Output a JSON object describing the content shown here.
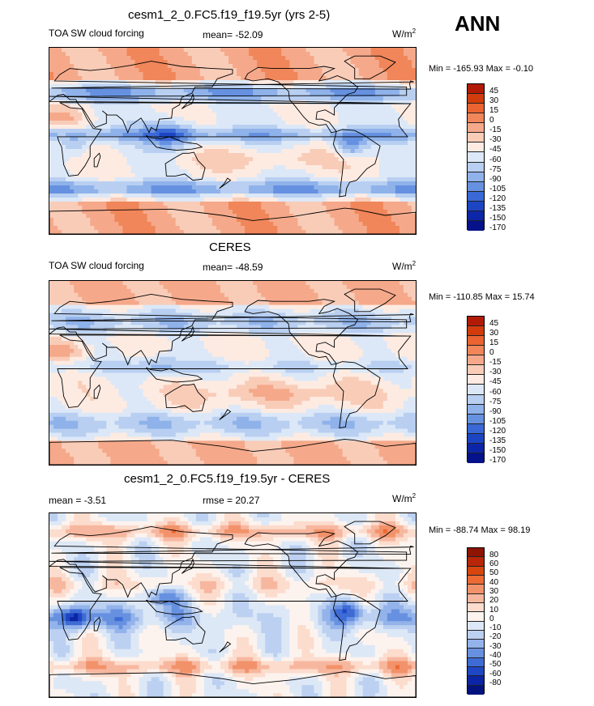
{
  "season": "ANN",
  "palette_full": [
    "#b21a06",
    "#d23c0c",
    "#ea6331",
    "#f0865a",
    "#f5a98a",
    "#f9ccb8",
    "#fdebe2",
    "#dce8f7",
    "#b8cff1",
    "#8fb2ea",
    "#6691e0",
    "#3a68d6",
    "#1c45c4",
    "#0d26a8",
    "#05128a"
  ],
  "palette_diff": [
    "#8e1403",
    "#b8270a",
    "#d8460f",
    "#ed6a35",
    "#f2926a",
    "#f7b79f",
    "#fcdccd",
    "#fdf3ee",
    "#dde8f7",
    "#bcd0f1",
    "#93b3ea",
    "#6791e0",
    "#3e6bd5",
    "#1f47c3",
    "#0c25a6",
    "#04127f"
  ],
  "panels": [
    {
      "title": "cesm1_2_0.FC5.f19_f19.5yr (yrs 2-5)",
      "left_label": "TOA SW cloud forcing",
      "stat_label": "mean= -52.09",
      "units": "W/m",
      "units_exp": "2",
      "minmax": "Min = -165.93 Max =  -0.10",
      "levels": [
        "45",
        "30",
        "15",
        "0",
        "-15",
        "-30",
        "-45",
        "-60",
        "-75",
        "-90",
        "-105",
        "-120",
        "-135",
        "-150",
        "-170"
      ],
      "field": "model"
    },
    {
      "title": "CERES",
      "left_label": "TOA SW cloud forcing",
      "stat_label": "mean= -48.59",
      "units": "W/m",
      "units_exp": "2",
      "minmax": "Min = -110.85 Max =  15.74",
      "levels": [
        "45",
        "30",
        "15",
        "0",
        "-15",
        "-30",
        "-45",
        "-60",
        "-75",
        "-90",
        "-105",
        "-120",
        "-135",
        "-150",
        "-170"
      ],
      "field": "obs"
    },
    {
      "title": "cesm1_2_0.FC5.f19_f19.5yr - CERES",
      "left_label": "mean =  -3.51",
      "stat_label": "rmse =  20.27",
      "units": "W/m",
      "units_exp": "2",
      "minmax": "Min = -88.74 Max =  98.19",
      "levels": [
        "80",
        "60",
        "50",
        "40",
        "30",
        "20",
        "10",
        "0",
        "-10",
        "-20",
        "-30",
        "-40",
        "-50",
        "-60",
        "-80"
      ],
      "field": "diff"
    }
  ]
}
